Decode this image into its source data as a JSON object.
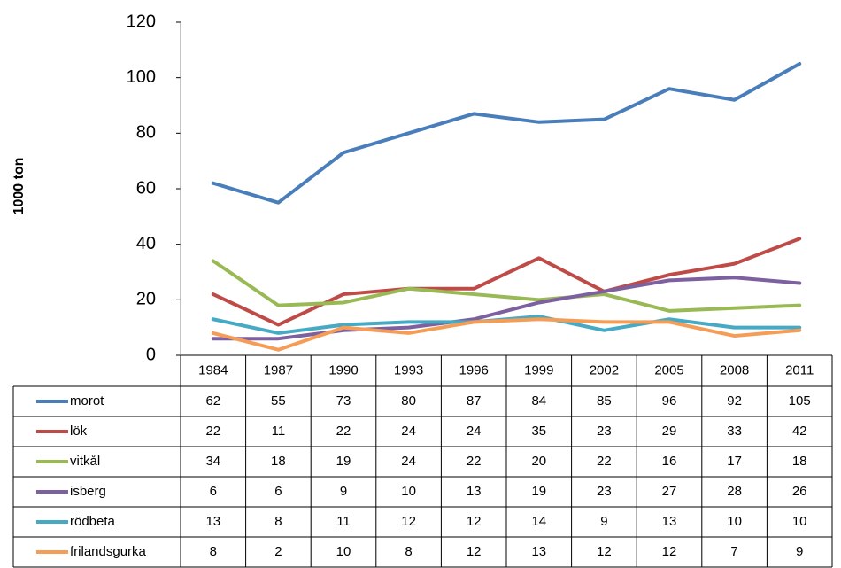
{
  "chart_data": {
    "type": "line",
    "y_label": "1000 ton",
    "categories": [
      "1984",
      "1987",
      "1990",
      "1993",
      "1996",
      "1999",
      "2002",
      "2005",
      "2008",
      "2011"
    ],
    "series": [
      {
        "name": "morot",
        "color": "#4a7ebb",
        "values": [
          62,
          55,
          73,
          80,
          87,
          84,
          85,
          96,
          92,
          105
        ]
      },
      {
        "name": "lök",
        "color": "#be4b48",
        "values": [
          22,
          11,
          22,
          24,
          24,
          35,
          23,
          29,
          33,
          42
        ]
      },
      {
        "name": "vitkål",
        "color": "#98b954",
        "values": [
          34,
          18,
          19,
          24,
          22,
          20,
          22,
          16,
          17,
          18
        ]
      },
      {
        "name": "isberg",
        "color": "#7d60a0",
        "values": [
          6,
          6,
          9,
          10,
          13,
          19,
          23,
          27,
          28,
          26
        ]
      },
      {
        "name": "rödbeta",
        "color": "#46aac5",
        "values": [
          13,
          8,
          11,
          12,
          12,
          14,
          9,
          13,
          10,
          10
        ]
      },
      {
        "name": "frilandsgurka",
        "color": "#f59d56",
        "values": [
          8,
          2,
          10,
          8,
          12,
          13,
          12,
          12,
          7,
          9
        ]
      }
    ],
    "ylim": [
      0,
      120
    ],
    "yticks": [
      0,
      20,
      40,
      60,
      80,
      100,
      120
    ],
    "grid": false,
    "data_table": true
  }
}
